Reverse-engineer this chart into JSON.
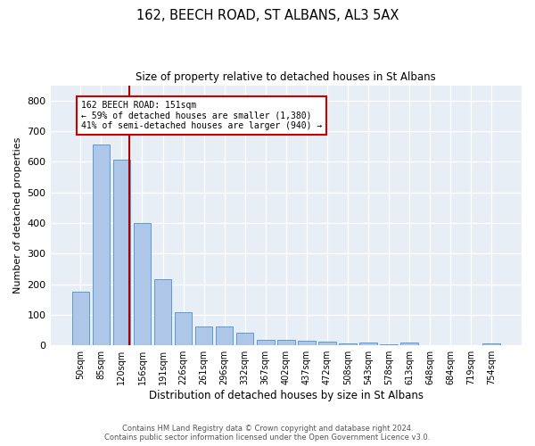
{
  "title": "162, BEECH ROAD, ST ALBANS, AL3 5AX",
  "subtitle": "Size of property relative to detached houses in St Albans",
  "xlabel": "Distribution of detached houses by size in St Albans",
  "ylabel": "Number of detached properties",
  "bar_labels": [
    "50sqm",
    "85sqm",
    "120sqm",
    "156sqm",
    "191sqm",
    "226sqm",
    "261sqm",
    "296sqm",
    "332sqm",
    "367sqm",
    "402sqm",
    "437sqm",
    "472sqm",
    "508sqm",
    "543sqm",
    "578sqm",
    "613sqm",
    "648sqm",
    "684sqm",
    "719sqm",
    "754sqm"
  ],
  "bar_values": [
    175,
    655,
    608,
    400,
    215,
    107,
    63,
    63,
    42,
    18,
    17,
    15,
    13,
    7,
    8,
    3,
    8,
    0,
    0,
    0,
    7
  ],
  "bar_color": "#aec6e8",
  "bar_edgecolor": "#5b9bd5",
  "background_color": "#e8eef5",
  "grid_color": "#ffffff",
  "vline_color": "#aa0000",
  "annotation_text_line1": "162 BEECH ROAD: 151sqm",
  "annotation_text_line2": "← 59% of detached houses are smaller (1,380)",
  "annotation_text_line3": "41% of semi-detached houses are larger (940) →",
  "ylim": [
    0,
    850
  ],
  "yticks": [
    0,
    100,
    200,
    300,
    400,
    500,
    600,
    700,
    800
  ],
  "footer_line1": "Contains HM Land Registry data © Crown copyright and database right 2024.",
  "footer_line2": "Contains public sector information licensed under the Open Government Licence v3.0."
}
